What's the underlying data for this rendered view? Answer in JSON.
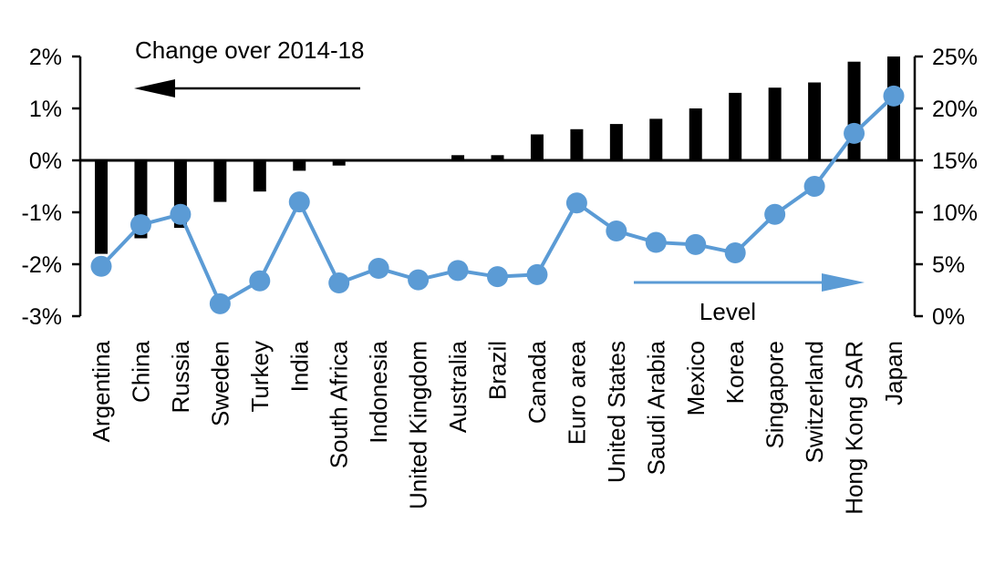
{
  "chart_data": {
    "type": "combo",
    "categories": [
      "Argentina",
      "China",
      "Russia",
      "Sweden",
      "Turkey",
      "India",
      "South Africa",
      "Indonesia",
      "United Kingdom",
      "Australia",
      "Brazil",
      "Canada",
      "Euro area",
      "United States",
      "Saudi Arabia",
      "Mexico",
      "Korea",
      "Singapore",
      "Switzerland",
      "Hong Kong SAR",
      "Japan"
    ],
    "series": [
      {
        "name": "Change over 2014-18",
        "type": "bar",
        "axis": "left",
        "color": "#000000",
        "values": [
          -1.8,
          -1.5,
          -1.3,
          -0.8,
          -0.6,
          -0.2,
          -0.1,
          0,
          0,
          0.1,
          0.1,
          0.5,
          0.6,
          0.7,
          0.8,
          1.0,
          1.3,
          1.4,
          1.5,
          1.9,
          2.0
        ]
      },
      {
        "name": "Level",
        "type": "line",
        "axis": "right",
        "color": "#5B9BD5",
        "values": [
          4.8,
          8.8,
          9.8,
          1.2,
          3.4,
          11.0,
          3.2,
          4.6,
          3.5,
          4.4,
          3.8,
          4.0,
          10.9,
          8.2,
          7.1,
          6.9,
          6.1,
          9.8,
          12.5,
          17.6,
          21.2
        ]
      }
    ],
    "left_axis": {
      "ticks": [
        "2%",
        "1%",
        "0%",
        "-1%",
        "-2%",
        "-3%"
      ],
      "tick_values": [
        2,
        1,
        0,
        -1,
        -2,
        -3
      ],
      "min": -3,
      "max": 2
    },
    "right_axis": {
      "ticks": [
        "25%",
        "20%",
        "15%",
        "10%",
        "5%",
        "0%"
      ],
      "tick_values": [
        25,
        20,
        15,
        10,
        5,
        0
      ],
      "min": 0,
      "max": 25
    },
    "grid": false,
    "legend_position": "none",
    "annotations": [
      {
        "text": "Change over 2014-18",
        "arrow": "left",
        "color": "#000000"
      },
      {
        "text": "Level",
        "arrow": "right",
        "color": "#5B9BD5"
      }
    ]
  }
}
